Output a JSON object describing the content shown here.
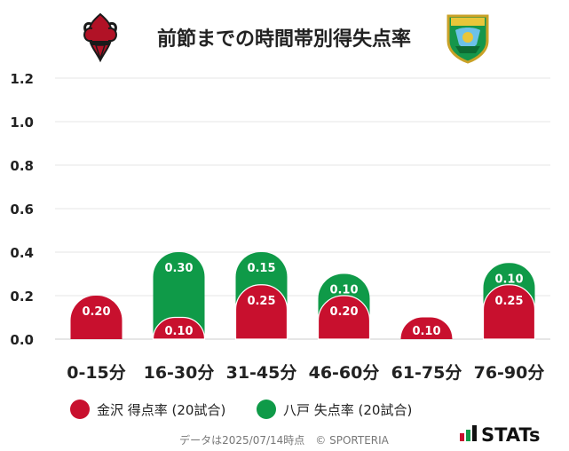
{
  "chart_data": {
    "type": "bar",
    "title": "前節までの時間帯別得失点率",
    "categories": [
      "0-15分",
      "16-30分",
      "31-45分",
      "46-60分",
      "61-75分",
      "76-90分"
    ],
    "series": [
      {
        "name": "金沢 得点率 (20試合)",
        "color": "#c8102e",
        "values": [
          0.2,
          0.1,
          0.25,
          0.2,
          0.1,
          0.25
        ]
      },
      {
        "name": "八戸 失点率 (20試合)",
        "color": "#0f9a48",
        "values": [
          0.0,
          0.3,
          0.15,
          0.1,
          0.0,
          0.1
        ]
      }
    ],
    "y_ticks": [
      "0.0",
      "0.2",
      "0.4",
      "0.6",
      "0.8",
      "1.0",
      "1.2"
    ],
    "ylim": [
      0,
      1.2
    ],
    "stacked": true,
    "grid": true,
    "legend_position": "bottom-left"
  },
  "footer": {
    "note": "データは2025/07/14時点　© SPORTERIA",
    "brand": "STATs"
  },
  "logos": {
    "left": "kanazawa-fleur-de-lis-emblem",
    "right": "hachinohe-crest-emblem"
  }
}
